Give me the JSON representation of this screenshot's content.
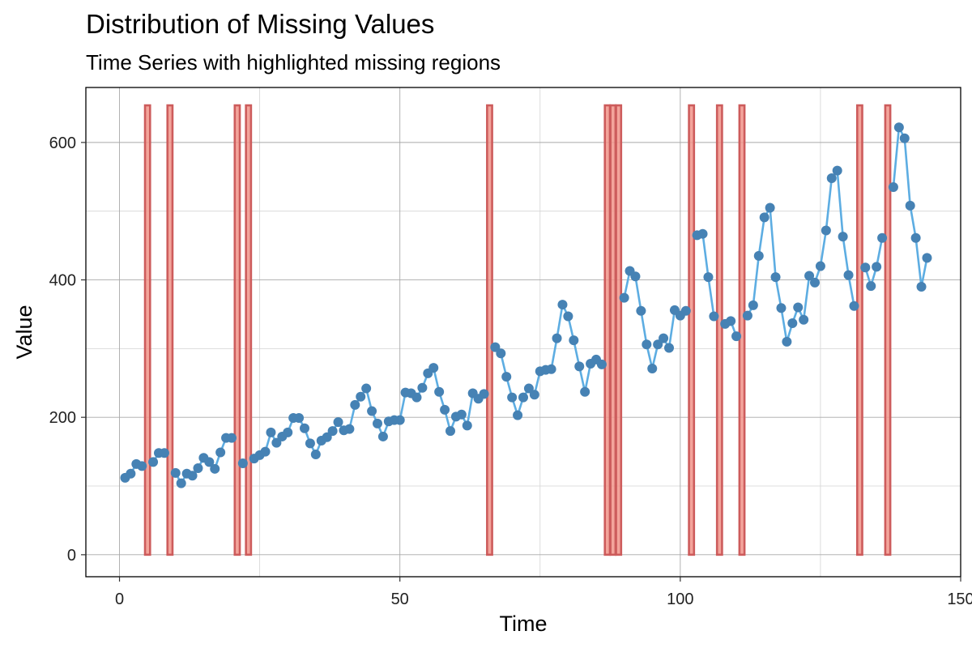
{
  "chart_data": {
    "type": "line",
    "title": "Distribution of Missing Values",
    "subtitle": "Time Series with highlighted missing regions",
    "xlabel": "Time",
    "ylabel": "Value",
    "xlim": [
      -6,
      150
    ],
    "ylim": [
      -32,
      680
    ],
    "xticks": [
      0,
      50,
      100,
      150
    ],
    "yticks": [
      0,
      200,
      400,
      600
    ],
    "grid": true,
    "colors": {
      "line": "#5DADE2",
      "point": "#4682B4",
      "missing_fill": "#F1948A",
      "missing_edge": "#CD5C5C"
    },
    "missing_x": [
      5,
      9,
      21,
      23,
      66,
      87,
      88,
      89,
      102,
      107,
      111,
      132,
      137
    ],
    "missing_band_top": 654,
    "series": [
      {
        "x": [
          1,
          2,
          3,
          4,
          5,
          6,
          7,
          8,
          9,
          10,
          11,
          12,
          13,
          14,
          15,
          16,
          17,
          18,
          19,
          20,
          21,
          22,
          23,
          24,
          25,
          26,
          27,
          28,
          29,
          30,
          31,
          32,
          33,
          34,
          35,
          36,
          37,
          38,
          39,
          40,
          41,
          42,
          43,
          44,
          45,
          46,
          47,
          48,
          49,
          50,
          51,
          52,
          53,
          54,
          55,
          56,
          57,
          58,
          59,
          60,
          61,
          62,
          63,
          64,
          65,
          66,
          67,
          68,
          69,
          70,
          71,
          72,
          73,
          74,
          75,
          76,
          77,
          78,
          79,
          80,
          81,
          82,
          83,
          84,
          85,
          86,
          87,
          88,
          89,
          90,
          91,
          92,
          93,
          94,
          95,
          96,
          97,
          98,
          99,
          100,
          101,
          102,
          103,
          104,
          105,
          106,
          107,
          108,
          109,
          110,
          111,
          112,
          113,
          114,
          115,
          116,
          117,
          118,
          119,
          120,
          121,
          122,
          123,
          124,
          125,
          126,
          127,
          128,
          129,
          130,
          131,
          132,
          133,
          134,
          135,
          136,
          137,
          138,
          139,
          140,
          141,
          142,
          143,
          144
        ],
        "y": [
          112,
          118,
          132,
          129,
          null,
          135,
          148,
          148,
          null,
          119,
          104,
          118,
          115,
          126,
          141,
          135,
          125,
          149,
          170,
          170,
          null,
          133,
          null,
          140,
          145,
          150,
          178,
          163,
          172,
          178,
          199,
          199,
          184,
          162,
          146,
          166,
          171,
          180,
          193,
          181,
          183,
          218,
          230,
          242,
          209,
          191,
          172,
          194,
          196,
          196,
          236,
          235,
          229,
          243,
          264,
          272,
          237,
          211,
          180,
          201,
          204,
          188,
          235,
          227,
          234,
          null,
          302,
          293,
          259,
          229,
          203,
          229,
          242,
          233,
          267,
          269,
          270,
          315,
          364,
          347,
          312,
          274,
          237,
          278,
          284,
          277,
          null,
          null,
          null,
          374,
          413,
          405,
          355,
          306,
          271,
          306,
          315,
          301,
          356,
          348,
          355,
          null,
          465,
          467,
          404,
          347,
          null,
          336,
          340,
          318,
          null,
          348,
          363,
          435,
          491,
          505,
          404,
          359,
          310,
          337,
          360,
          342,
          406,
          396,
          420,
          472,
          548,
          559,
          463,
          407,
          362,
          null,
          418,
          391,
          419,
          461,
          null,
          535,
          622,
          606,
          508,
          461,
          390,
          432
        ]
      }
    ]
  }
}
